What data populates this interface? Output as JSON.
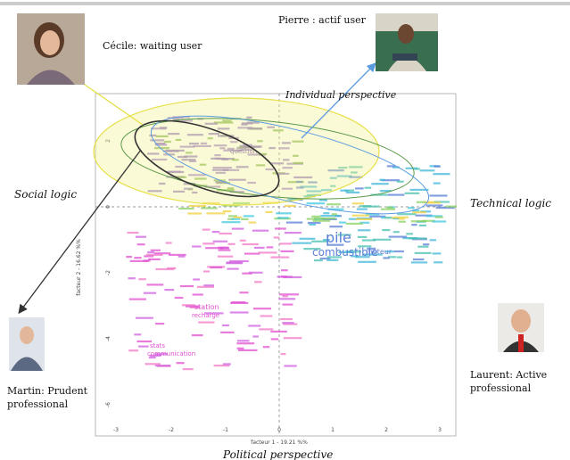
{
  "labels": {
    "cecile": "Cécile: waiting user",
    "pierre": "Pierre : actif user",
    "martin": [
      "Martin: Prudent",
      "professional"
    ],
    "laurent": [
      "Laurent: Active",
      "professional"
    ]
  },
  "perspectives": {
    "individual": "Individual perspective",
    "political": "Political perspective",
    "social": "Social logic",
    "technical": "Technical logic"
  },
  "plot": {
    "x_label": "facteur 1 - 19.21 %%",
    "y_label": "facteur 2 - 16.62 %%",
    "x_ticks": [
      "-3",
      "-2",
      "-1",
      "0",
      "1",
      "2",
      "3"
    ],
    "y_ticks": [
      "2",
      "0",
      "-2",
      "-4",
      "-6"
    ],
    "words": [
      {
        "text": "pile",
        "color": "#5b7fd6"
      },
      {
        "text": "combustible",
        "color": "#5b7fd6"
      },
      {
        "text": "moteur",
        "color": "#5b7fd6"
      },
      {
        "text": "question",
        "color": "#7a5fb0"
      },
      {
        "text": "station",
        "color": "#e04fd0"
      },
      {
        "text": "recharge",
        "color": "#e04fd0"
      },
      {
        "text": "stats",
        "color": "#e04fd0"
      },
      {
        "text": "communication",
        "color": "#e04fd0"
      }
    ]
  }
}
